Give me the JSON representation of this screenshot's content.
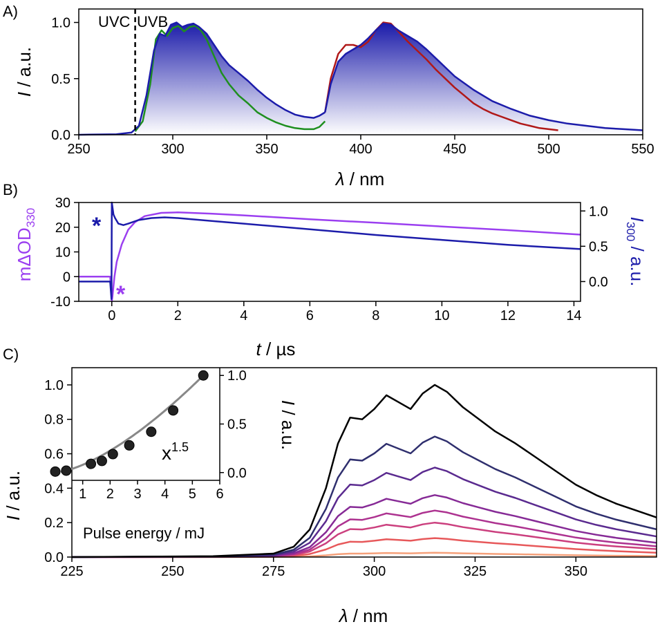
{
  "chart_data": [
    {
      "panel": "A)",
      "type": "line",
      "xlabel_sym": "λ",
      "xlabel_rest": " / nm",
      "ylabel_sym": "I",
      "ylabel_rest": " / a.u.",
      "xlim": [
        250,
        550
      ],
      "ylim": [
        0,
        1.12
      ],
      "xticks": [
        250,
        300,
        350,
        400,
        450,
        500,
        550
      ],
      "yticks": [
        0.0,
        0.5,
        1.0
      ],
      "annotations": [
        "UVC",
        "UVB"
      ],
      "divider_x": 280,
      "colors": {
        "blue": "#1c1caa",
        "green": "#1f8f1f",
        "red": "#b01818"
      },
      "series": [
        {
          "color": "blue",
          "fill": true,
          "x": [
            250,
            270,
            278,
            282,
            286,
            290,
            293,
            296,
            299,
            302,
            305,
            308,
            311,
            314,
            318,
            322,
            326,
            330,
            335,
            340,
            345,
            350,
            355,
            360,
            365,
            370,
            375,
            378,
            381
          ],
          "y": [
            0.0,
            0.005,
            0.02,
            0.08,
            0.35,
            0.75,
            0.9,
            0.88,
            0.98,
            1.0,
            0.96,
            0.98,
            0.99,
            0.96,
            0.9,
            0.8,
            0.7,
            0.62,
            0.55,
            0.48,
            0.4,
            0.33,
            0.27,
            0.22,
            0.18,
            0.16,
            0.15,
            0.17,
            0.2
          ]
        },
        {
          "color": "blue",
          "fill": true,
          "x": [
            381,
            384,
            388,
            392,
            396,
            400,
            404,
            408,
            412,
            416,
            420,
            425,
            430,
            435,
            440,
            445,
            450,
            460,
            470,
            480,
            490,
            500,
            510,
            520,
            530,
            540,
            550
          ],
          "y": [
            0.2,
            0.45,
            0.65,
            0.72,
            0.76,
            0.8,
            0.86,
            0.93,
            0.99,
            0.98,
            0.93,
            0.88,
            0.83,
            0.76,
            0.68,
            0.6,
            0.52,
            0.4,
            0.3,
            0.23,
            0.17,
            0.13,
            0.1,
            0.08,
            0.06,
            0.05,
            0.04
          ]
        },
        {
          "color": "green",
          "fill": false,
          "x": [
            280,
            284,
            288,
            291,
            294,
            297,
            300,
            303,
            306,
            309,
            312,
            315,
            318,
            322,
            326,
            330,
            335,
            340,
            345,
            350,
            355,
            360,
            365,
            370,
            375,
            378,
            381
          ],
          "y": [
            0.03,
            0.12,
            0.45,
            0.85,
            0.93,
            0.88,
            0.95,
            0.97,
            0.92,
            0.96,
            0.97,
            0.93,
            0.85,
            0.7,
            0.55,
            0.45,
            0.35,
            0.28,
            0.2,
            0.15,
            0.11,
            0.08,
            0.06,
            0.05,
            0.05,
            0.07,
            0.12
          ]
        },
        {
          "color": "red",
          "fill": false,
          "x": [
            381,
            384,
            388,
            392,
            396,
            400,
            404,
            408,
            412,
            416,
            420,
            425,
            430,
            435,
            440,
            445,
            450,
            455,
            460,
            465,
            470,
            475,
            480,
            485,
            490,
            495,
            500,
            505
          ],
          "y": [
            0.2,
            0.5,
            0.72,
            0.8,
            0.8,
            0.78,
            0.83,
            0.93,
            1.0,
            0.99,
            0.92,
            0.83,
            0.75,
            0.67,
            0.58,
            0.5,
            0.42,
            0.35,
            0.28,
            0.23,
            0.19,
            0.16,
            0.13,
            0.1,
            0.08,
            0.06,
            0.05,
            0.04
          ]
        }
      ]
    },
    {
      "panel": "B)",
      "type": "line",
      "xlabel_sym": "t",
      "xlabel_rest": " / µs",
      "ylabel_left": "mΔOD",
      "ylabel_left_sub": "330",
      "ylabel_right_sym": "I",
      "ylabel_right_sub": "300",
      "ylabel_right_rest": " / a.u.",
      "xlim": [
        -1,
        14.2
      ],
      "ylim_left": [
        -10,
        30
      ],
      "ylim_right": [
        -0.28,
        1.12
      ],
      "xticks": [
        0,
        2,
        4,
        6,
        8,
        10,
        12,
        14
      ],
      "yticks_left": [
        -10,
        0,
        10,
        20,
        30
      ],
      "yticks_right": [
        0.0,
        0.5,
        1.0
      ],
      "markers": [
        "*",
        "*"
      ],
      "colors": {
        "violet": "#9b3ff0",
        "navy": "#1c1caa"
      },
      "series": [
        {
          "color": "violet",
          "axis": "left",
          "x": [
            -1,
            -0.5,
            -0.05,
            0.0,
            0.02,
            0.08,
            0.15,
            0.3,
            0.5,
            0.7,
            1.0,
            1.5,
            2,
            3,
            4,
            6,
            8,
            10,
            12,
            14.2
          ],
          "y": [
            0,
            0,
            0,
            -10,
            -8,
            0,
            6,
            13,
            19,
            22,
            24.5,
            25.8,
            26,
            25.5,
            24.8,
            23.2,
            21.8,
            20.3,
            18.8,
            17
          ]
        },
        {
          "color": "navy",
          "axis": "right",
          "x": [
            -1,
            -0.5,
            -0.05,
            -0.01,
            0.0,
            0.05,
            0.1,
            0.2,
            0.35,
            0.5,
            0.8,
            1.2,
            1.6,
            2.0,
            3,
            4,
            6,
            8,
            10,
            12,
            14.2
          ],
          "y": [
            0.0,
            0.0,
            0.0,
            -0.25,
            1.12,
            0.95,
            0.9,
            0.82,
            0.8,
            0.82,
            0.87,
            0.9,
            0.91,
            0.9,
            0.86,
            0.82,
            0.74,
            0.66,
            0.59,
            0.52,
            0.46
          ]
        }
      ]
    },
    {
      "panel": "C)",
      "type": "line",
      "xlabel_sym": "λ",
      "xlabel_rest": " / nm",
      "ylabel_sym": "I",
      "ylabel_rest": " / a.u.",
      "xlim": [
        225,
        370
      ],
      "ylim": [
        0,
        1.1
      ],
      "xticks": [
        225,
        250,
        275,
        300,
        325,
        350
      ],
      "yticks": [
        0.0,
        0.2,
        0.4,
        0.6,
        0.8,
        1.0
      ],
      "x": [
        225,
        260,
        275,
        280,
        284,
        288,
        291,
        294,
        297,
        300,
        303,
        306,
        309,
        312,
        315,
        318,
        322,
        326,
        330,
        335,
        340,
        345,
        350,
        355,
        360,
        365,
        370
      ],
      "shape": [
        0.0,
        0.005,
        0.02,
        0.06,
        0.16,
        0.4,
        0.66,
        0.81,
        0.8,
        0.86,
        0.94,
        0.9,
        0.86,
        0.95,
        1.0,
        0.96,
        0.87,
        0.8,
        0.73,
        0.66,
        0.58,
        0.5,
        0.42,
        0.36,
        0.31,
        0.27,
        0.23
      ],
      "series": [
        {
          "color": "#000000",
          "scale": 1.0
        },
        {
          "color": "#2f2f6e",
          "scale": 0.7
        },
        {
          "color": "#5a2a8f",
          "scale": 0.52
        },
        {
          "color": "#862a96",
          "scale": 0.36
        },
        {
          "color": "#ad3290",
          "scale": 0.27
        },
        {
          "color": "#cb3f7e",
          "scale": 0.2
        },
        {
          "color": "#e7585a",
          "scale": 0.11
        },
        {
          "color": "#f5a07a",
          "scale": 0.025
        }
      ],
      "inset": {
        "type": "scatter",
        "xlabel": "Pulse energy / mJ",
        "ylabel_sym": "I",
        "ylabel_rest": " / a.u.",
        "xlim": [
          0,
          6
        ],
        "ylim": [
          -0.08,
          1.08
        ],
        "xticks": [
          1,
          2,
          3,
          4,
          5,
          6
        ],
        "yticks": [
          0.0,
          0.5,
          1.0
        ],
        "annotation_base": "x",
        "annotation_exp": "1.5",
        "points": {
          "x": [
            0.0,
            0.4,
            1.3,
            1.7,
            2.1,
            2.7,
            3.5,
            4.3,
            5.4
          ],
          "y": [
            0.01,
            0.02,
            0.09,
            0.12,
            0.19,
            0.28,
            0.42,
            0.64,
            1.0
          ]
        },
        "fit_exponent": 1.5
      }
    }
  ]
}
